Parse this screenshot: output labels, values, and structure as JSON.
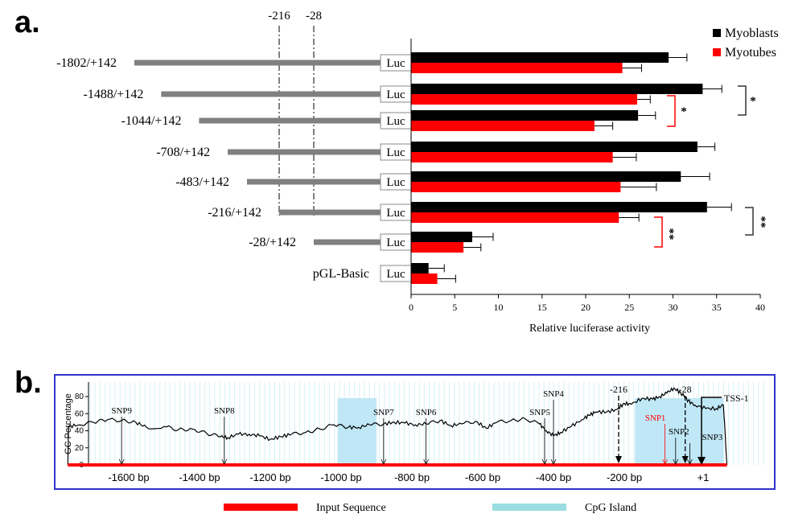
{
  "panel_a": {
    "label": "a.",
    "region_markers": [
      "-216",
      "-28"
    ],
    "luc_label": "Luc",
    "constructs": [
      {
        "name": "-1802/+142",
        "start": -1802
      },
      {
        "name": "-1488/+142",
        "start": -1488
      },
      {
        "name": "-1044/+142",
        "start": -1044
      },
      {
        "name": "-708/+142",
        "start": -708
      },
      {
        "name": "-483/+142",
        "start": -483
      },
      {
        "name": "-216/+142",
        "start": -216
      },
      {
        "name": "-28/+142",
        "start": -28
      },
      {
        "name": "pGL-Basic",
        "start": null
      }
    ],
    "colors": {
      "myoblasts": "#000000",
      "myotubes": "#ff0000",
      "promoter_bar": "#808080"
    },
    "significance": [
      {
        "text": "*",
        "color": "#ff0000",
        "rows": [
          1,
          2
        ],
        "series": "Myotubes"
      },
      {
        "text": "*",
        "color": "#333333",
        "rows": [
          1,
          2
        ],
        "series": "both"
      },
      {
        "text": "**",
        "color": "#ff0000",
        "rows": [
          5,
          6
        ],
        "series": "Myotubes"
      },
      {
        "text": "**",
        "color": "#333333",
        "rows": [
          5,
          6
        ],
        "series": "both"
      }
    ]
  },
  "chart_data": [
    {
      "type": "bar",
      "orientation": "horizontal",
      "categories": [
        "-1802/+142",
        "-1488/+142",
        "-1044/+142",
        "-708/+142",
        "-483/+142",
        "-216/+142",
        "-28/+142",
        "pGL-Basic"
      ],
      "series": [
        {
          "name": "Myoblasts",
          "values": [
            29.5,
            33.4,
            26.0,
            32.8,
            30.9,
            33.9,
            7.0,
            2.0
          ],
          "errors": [
            2.1,
            2.2,
            2.0,
            2.0,
            3.3,
            2.8,
            2.4,
            1.8
          ]
        },
        {
          "name": "Myotubes",
          "values": [
            24.2,
            25.9,
            21.0,
            23.1,
            24.0,
            23.8,
            6.0,
            3.0
          ],
          "errors": [
            2.2,
            1.5,
            2.1,
            2.7,
            4.1,
            2.3,
            2.0,
            2.1
          ]
        }
      ],
      "xlabel": "Relative luciferase activity",
      "ylabel": "",
      "xlim": [
        0,
        40
      ],
      "xticks": [
        "0",
        "5",
        "10",
        "15",
        "20",
        "25",
        "30",
        "35",
        "40"
      ],
      "legend": "top-right"
    },
    {
      "type": "line",
      "ylabel": "GC Percentage",
      "yticks": [
        "0",
        "20",
        "40",
        "60",
        "80"
      ],
      "ylim": [
        0,
        100
      ],
      "xlim": [
        -1780,
        160
      ],
      "xticks": [
        "-1600 bp",
        "-1400 bp",
        "-1200 bp",
        "-1000 bp",
        "-800 bp",
        "-600 bp",
        "-400 bp",
        "-200 bp",
        "+1"
      ],
      "xtick_values": [
        -1600,
        -1400,
        -1200,
        -1000,
        -800,
        -600,
        -400,
        -200,
        0
      ],
      "x": [
        -1772,
        -1770,
        -1740,
        -1700,
        -1660,
        -1620,
        -1580,
        -1550,
        -1500,
        -1460,
        -1420,
        -1380,
        -1340,
        -1320,
        -1290,
        -1260,
        -1230,
        -1200,
        -1170,
        -1140,
        -1100,
        -1060,
        -1020,
        -980,
        -950,
        -920,
        -880,
        -850,
        -820,
        -790,
        -760,
        -720,
        -690,
        -660,
        -620,
        -590,
        -560,
        -520,
        -480,
        -440,
        -420,
        -400,
        -380,
        -350,
        -320,
        -300,
        -280,
        -250,
        -220,
        -200,
        -180,
        -150,
        -120,
        -100,
        -80,
        -60,
        -40,
        -30,
        -20,
        0,
        30,
        60,
        80,
        90
      ],
      "y": [
        0,
        45,
        47,
        50,
        53,
        52,
        50,
        44,
        45,
        41,
        42,
        37,
        33,
        32,
        36,
        36,
        34,
        30,
        33,
        36,
        38,
        42,
        47,
        44,
        44,
        47,
        48,
        50,
        49,
        47,
        48,
        52,
        46,
        48,
        51,
        43,
        50,
        52,
        54,
        48,
        40,
        34,
        38,
        45,
        53,
        58,
        62,
        62,
        65,
        72,
        71,
        78,
        77,
        80,
        84,
        90,
        84,
        80,
        75,
        70,
        66,
        66,
        70,
        0
      ],
      "cpg_islands": [
        [
          -1010,
          -900
        ],
        [
          -170,
          80
        ]
      ],
      "snps": [
        {
          "name": "SNP9",
          "pos": -1620
        },
        {
          "name": "SNP8",
          "pos": -1330
        },
        {
          "name": "SNP7",
          "pos": -880
        },
        {
          "name": "SNP6",
          "pos": -760
        },
        {
          "name": "SNP5",
          "pos": -425
        },
        {
          "name": "SNP4",
          "pos": -400
        },
        {
          "name": "SNP1",
          "pos": -85
        },
        {
          "name": "SNP2",
          "pos": -55
        },
        {
          "name": "SNP3",
          "pos": -15
        }
      ],
      "markers": [
        {
          "name": "-216",
          "pos": -216
        },
        {
          "name": "-28",
          "pos": -28
        },
        {
          "name": "TSS-1",
          "pos": 0
        }
      ],
      "legend": [
        {
          "name": "Input Sequence",
          "color": "#ff0000"
        },
        {
          "name": "CpG Island",
          "color": "#99dde0"
        }
      ],
      "colors": {
        "input_sequence": "#ff0000",
        "cpg_island": "#bfe7f6",
        "frame": "#3333cc",
        "snp1": "#ff0000"
      }
    }
  ],
  "panel_b": {
    "label": "b."
  }
}
